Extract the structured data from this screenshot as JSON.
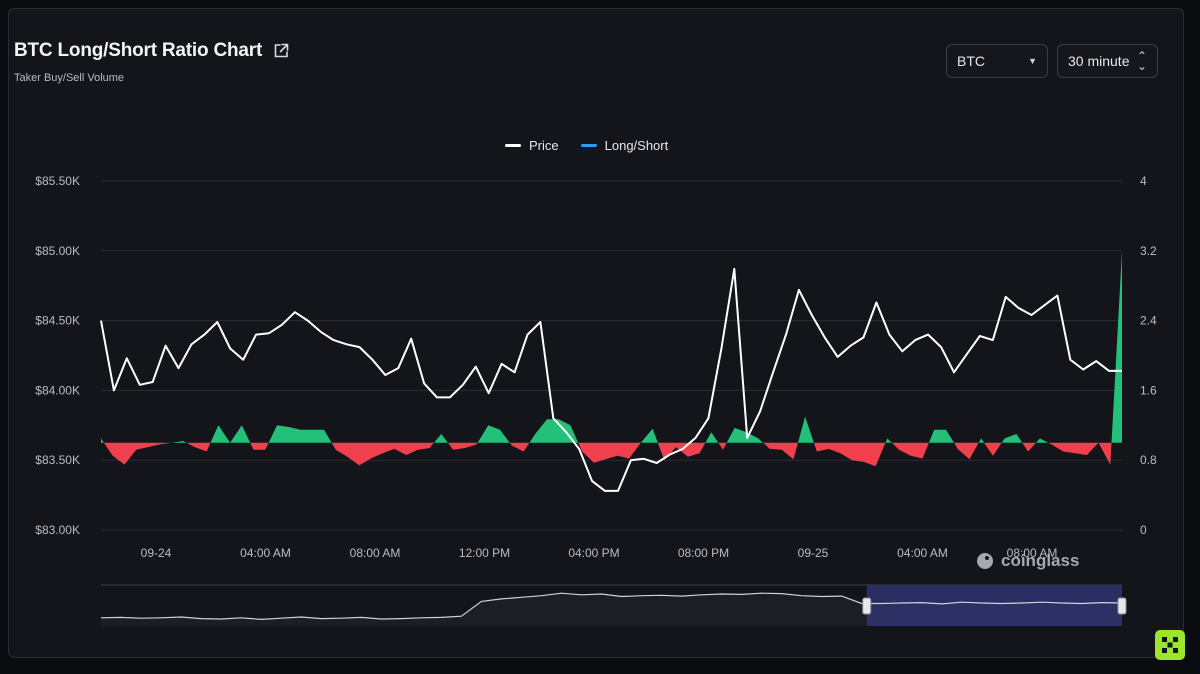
{
  "header": {
    "title": "BTC Long/Short Ratio Chart",
    "subtitle": "Taker Buy/Sell Volume"
  },
  "controls": {
    "coin_select": "BTC",
    "interval_select": "30 minute"
  },
  "watermark": "coinglass",
  "colors": {
    "price_line": "#ffffff",
    "long_short_legend": "#2f9cf4",
    "above_baseline": "#23c07a",
    "below_baseline": "#f0404d",
    "grid": "#2a2d36"
  },
  "chart_data": {
    "type": "line",
    "title": "BTC Long/Short Ratio Chart",
    "subtitle": "Taker Buy/Sell Volume",
    "legend": [
      "Price",
      "Long/Short"
    ],
    "legend_position": "top-center",
    "grid": true,
    "x_tick_labels": [
      "09-24",
      "04:00 AM",
      "08:00 AM",
      "12:00 PM",
      "04:00 PM",
      "08:00 PM",
      "09-25",
      "04:00 AM",
      "08:00 AM"
    ],
    "y_left": {
      "ticks": [
        "$83.00K",
        "$83.50K",
        "$84.00K",
        "$84.50K",
        "$85.00K",
        "$85.50K"
      ],
      "range": [
        83000,
        85500
      ]
    },
    "y_right": {
      "ticks": [
        "0",
        "0.8",
        "1.6",
        "2.4",
        "3.2",
        "4"
      ],
      "range": [
        0,
        4
      ]
    },
    "ratio_baseline": 1.0,
    "series": [
      {
        "name": "Price",
        "axis": "left",
        "values": [
          84500,
          84000,
          84230,
          84040,
          84060,
          84320,
          84160,
          84330,
          84400,
          84490,
          84300,
          84220,
          84400,
          84410,
          84470,
          84560,
          84500,
          84420,
          84360,
          84330,
          84310,
          84220,
          84110,
          84160,
          84370,
          84050,
          83950,
          83950,
          84040,
          84170,
          83980,
          84190,
          84130,
          84400,
          84490,
          83800,
          83700,
          83580,
          83350,
          83280,
          83280,
          83500,
          83510,
          83480,
          83540,
          83580,
          83660,
          83800,
          84300,
          84870,
          83660,
          83850,
          84130,
          84400,
          84720,
          84540,
          84380,
          84240,
          84320,
          84380,
          84630,
          84400,
          84280,
          84360,
          84400,
          84310,
          84130,
          84260,
          84390,
          84360,
          84670,
          84590,
          84540,
          84610,
          84680,
          84220,
          84150,
          84210,
          84140,
          84140
        ]
      },
      {
        "name": "Long/Short",
        "axis": "right",
        "values": [
          1.05,
          0.85,
          0.75,
          0.92,
          0.95,
          0.98,
          1.0,
          1.02,
          0.95,
          0.9,
          1.2,
          1.0,
          1.2,
          0.92,
          0.92,
          1.2,
          1.18,
          1.15,
          1.15,
          1.15,
          0.92,
          0.84,
          0.74,
          0.82,
          0.88,
          0.93,
          0.86,
          0.92,
          0.94,
          1.1,
          0.92,
          0.94,
          0.98,
          1.2,
          1.15,
          0.97,
          0.9,
          1.1,
          1.27,
          1.27,
          1.2,
          0.9,
          0.77,
          0.81,
          0.85,
          0.82,
          1.0,
          1.16,
          0.8,
          0.95,
          0.84,
          0.88,
          1.12,
          0.92,
          1.17,
          1.12,
          1.05,
          0.93,
          0.92,
          0.81,
          1.3,
          0.9,
          0.93,
          0.88,
          0.8,
          0.78,
          0.73,
          1.05,
          0.92,
          0.85,
          0.82,
          1.15,
          1.15,
          0.93,
          0.81,
          1.05,
          0.85,
          1.05,
          1.1,
          0.9,
          1.05,
          0.98,
          0.9,
          0.88,
          0.86,
          1.0,
          0.75,
          3.2
        ]
      }
    ],
    "navigator": {
      "values": [
        0.2,
        0.21,
        0.19,
        0.2,
        0.22,
        0.18,
        0.17,
        0.2,
        0.16,
        0.19,
        0.22,
        0.18,
        0.19,
        0.21,
        0.17,
        0.18,
        0.2,
        0.21,
        0.24,
        0.6,
        0.66,
        0.7,
        0.74,
        0.8,
        0.76,
        0.78,
        0.72,
        0.74,
        0.75,
        0.73,
        0.76,
        0.78,
        0.77,
        0.8,
        0.79,
        0.74,
        0.72,
        0.73,
        0.55,
        0.55,
        0.56,
        0.57,
        0.54,
        0.58,
        0.56,
        0.55,
        0.56,
        0.58,
        0.56,
        0.55,
        0.57,
        0.56
      ],
      "selected_range": [
        0.75,
        1.0
      ]
    }
  }
}
